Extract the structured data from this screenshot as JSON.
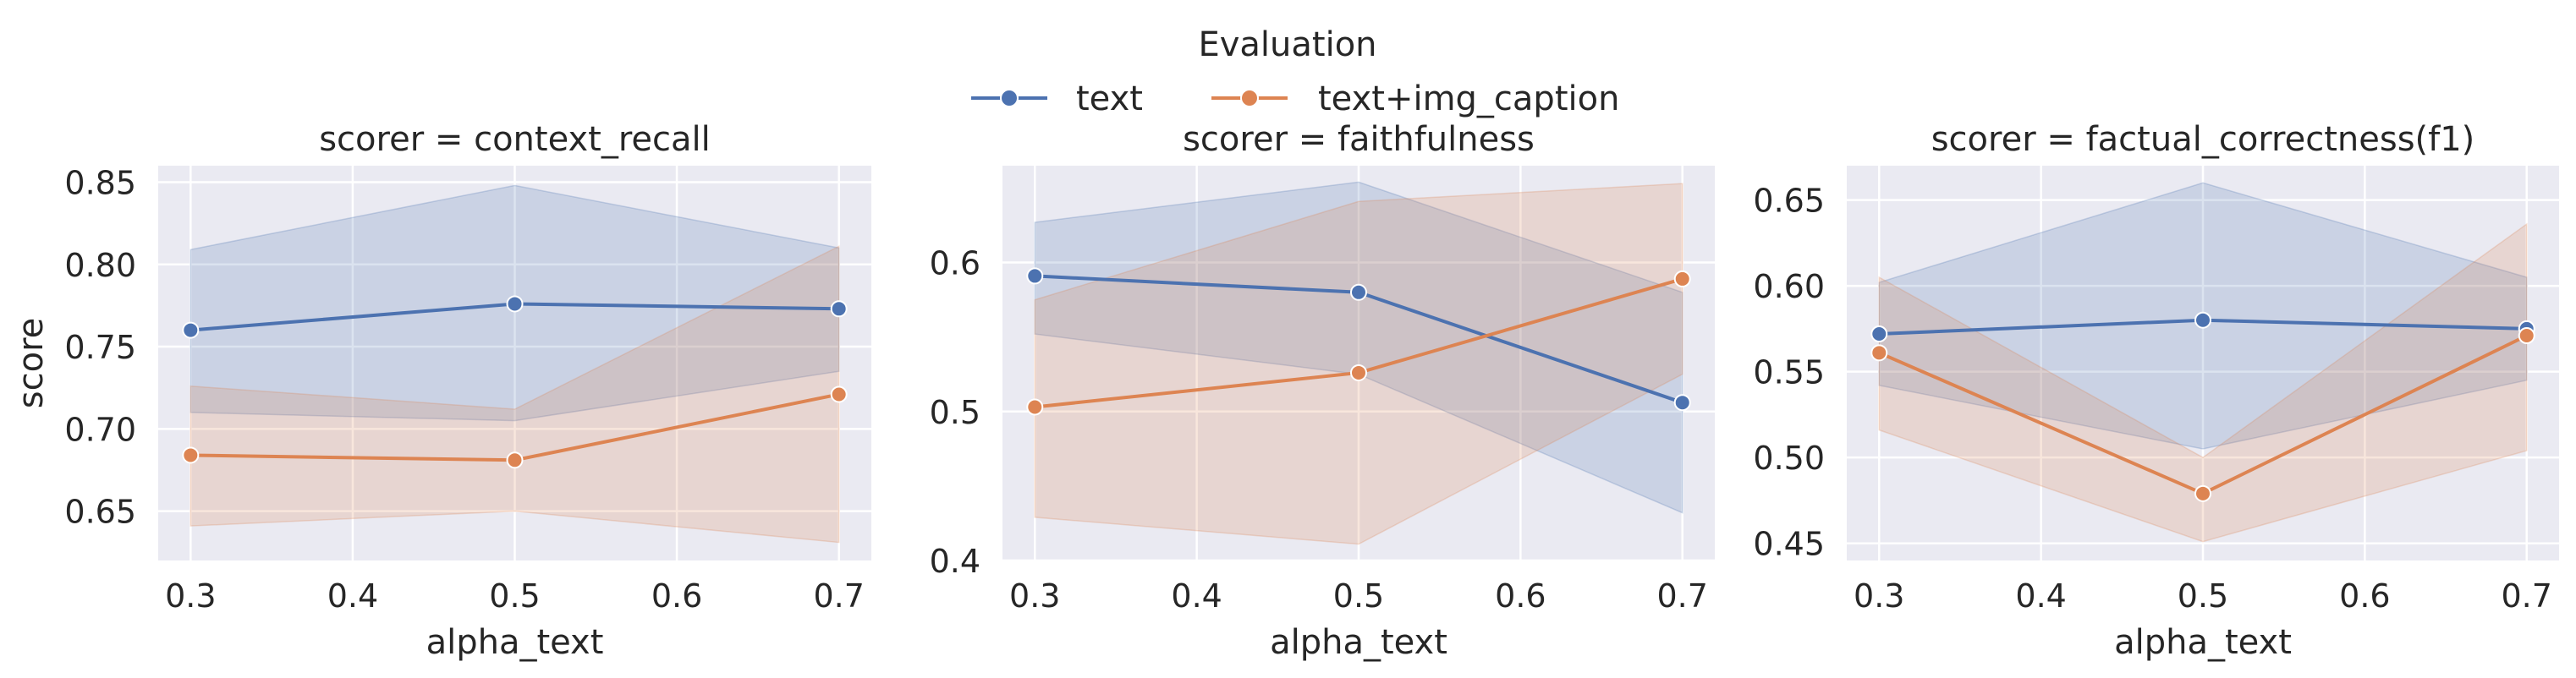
{
  "legend": {
    "title": "Evaluation",
    "entries": [
      {
        "label": "text",
        "color": "#4c72b0"
      },
      {
        "label": "text+img_caption",
        "color": "#dd8452"
      }
    ]
  },
  "chart_data": [
    {
      "type": "line",
      "title": "scorer = context_recall",
      "xlabel": "alpha_text",
      "ylabel": "score",
      "x": [
        0.3,
        0.5,
        0.7
      ],
      "xticks": [
        0.3,
        0.4,
        0.5,
        0.6,
        0.7
      ],
      "xtick_labels": [
        "0.3",
        "0.4",
        "0.5",
        "0.6",
        "0.7"
      ],
      "xlim": [
        0.28,
        0.72
      ],
      "ylim": [
        0.62,
        0.86
      ],
      "yticks": [
        0.65,
        0.7,
        0.75,
        0.8,
        0.85
      ],
      "ytick_labels": [
        "0.65",
        "0.70",
        "0.75",
        "0.80",
        "0.85"
      ],
      "grid": true,
      "series": [
        {
          "name": "text",
          "color": "#4c72b0",
          "values": [
            0.76,
            0.776,
            0.773
          ],
          "ci_low": [
            0.71,
            0.705,
            0.735
          ],
          "ci_high": [
            0.809,
            0.848,
            0.81
          ]
        },
        {
          "name": "text+img_caption",
          "color": "#dd8452",
          "values": [
            0.684,
            0.681,
            0.721
          ],
          "ci_low": [
            0.641,
            0.65,
            0.631
          ],
          "ci_high": [
            0.726,
            0.712,
            0.811
          ]
        }
      ]
    },
    {
      "type": "line",
      "title": "scorer = faithfulness",
      "xlabel": "alpha_text",
      "ylabel": "",
      "x": [
        0.3,
        0.5,
        0.7
      ],
      "xticks": [
        0.3,
        0.4,
        0.5,
        0.6,
        0.7
      ],
      "xtick_labels": [
        "0.3",
        "0.4",
        "0.5",
        "0.6",
        "0.7"
      ],
      "xlim": [
        0.28,
        0.72
      ],
      "ylim": [
        0.4,
        0.665
      ],
      "yticks": [
        0.4,
        0.5,
        0.6
      ],
      "ytick_labels": [
        "0.4",
        "0.5",
        "0.6"
      ],
      "grid": true,
      "series": [
        {
          "name": "text",
          "color": "#4c72b0",
          "values": [
            0.591,
            0.58,
            0.506
          ],
          "ci_low": [
            0.552,
            0.525,
            0.432
          ],
          "ci_high": [
            0.627,
            0.654,
            0.58
          ]
        },
        {
          "name": "text+img_caption",
          "color": "#dd8452",
          "values": [
            0.503,
            0.526,
            0.589
          ],
          "ci_low": [
            0.429,
            0.411,
            0.525
          ],
          "ci_high": [
            0.575,
            0.641,
            0.653
          ]
        }
      ]
    },
    {
      "type": "line",
      "title": "scorer = factual_correctness(f1)",
      "xlabel": "alpha_text",
      "ylabel": "",
      "x": [
        0.3,
        0.5,
        0.7
      ],
      "xticks": [
        0.3,
        0.4,
        0.5,
        0.6,
        0.7
      ],
      "xtick_labels": [
        "0.3",
        "0.4",
        "0.5",
        "0.6",
        "0.7"
      ],
      "xlim": [
        0.28,
        0.72
      ],
      "ylim": [
        0.44,
        0.67
      ],
      "yticks": [
        0.45,
        0.5,
        0.55,
        0.6,
        0.65
      ],
      "ytick_labels": [
        "0.45",
        "0.50",
        "0.55",
        "0.60",
        "0.65"
      ],
      "grid": true,
      "series": [
        {
          "name": "text",
          "color": "#4c72b0",
          "values": [
            0.572,
            0.58,
            0.575
          ],
          "ci_low": [
            0.542,
            0.505,
            0.545
          ],
          "ci_high": [
            0.602,
            0.66,
            0.605
          ]
        },
        {
          "name": "text+img_caption",
          "color": "#dd8452",
          "values": [
            0.561,
            0.479,
            0.571
          ],
          "ci_low": [
            0.516,
            0.451,
            0.504
          ],
          "ci_high": [
            0.605,
            0.5,
            0.636
          ]
        }
      ]
    }
  ]
}
